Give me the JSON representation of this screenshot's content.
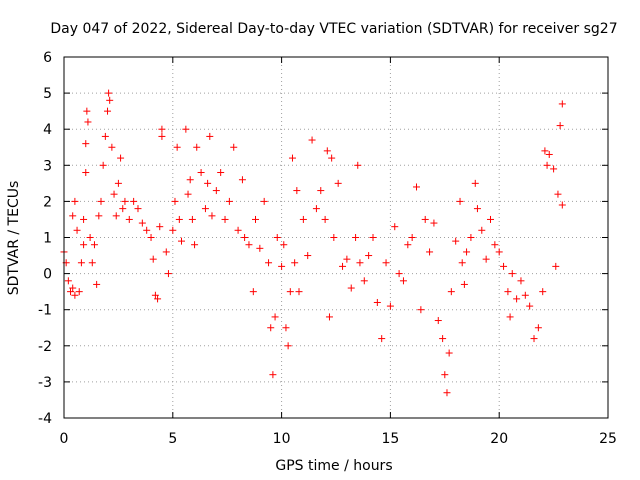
{
  "chart_data": {
    "type": "scatter",
    "title": "Day 047 of 2022, Sidereal Day-to-day VTEC variation (SDTVAR) for receiver sg27",
    "xlabel": "GPS time / hours",
    "ylabel": "SDTVAR / TECUs",
    "xlim": [
      0,
      25
    ],
    "ylim": [
      -4,
      6
    ],
    "xticks": [
      "0",
      "5",
      "10",
      "15",
      "20",
      "25"
    ],
    "yticks": [
      "-4",
      "-3",
      "-2",
      "-1",
      "0",
      "1",
      "2",
      "3",
      "4",
      "5",
      "6"
    ],
    "grid": true,
    "marker": "+",
    "marker_color": "#ff0000",
    "series": [
      {
        "name": "SDTVAR",
        "points": [
          [
            0.0,
            0.6
          ],
          [
            0.1,
            0.3
          ],
          [
            0.2,
            -0.2
          ],
          [
            0.3,
            -0.5
          ],
          [
            0.4,
            -0.4
          ],
          [
            0.4,
            1.6
          ],
          [
            0.5,
            2.0
          ],
          [
            0.5,
            -0.6
          ],
          [
            0.6,
            1.2
          ],
          [
            0.7,
            -0.5
          ],
          [
            0.8,
            0.3
          ],
          [
            0.9,
            0.8
          ],
          [
            0.9,
            1.5
          ],
          [
            1.0,
            2.8
          ],
          [
            1.0,
            3.6
          ],
          [
            1.05,
            4.5
          ],
          [
            1.1,
            4.2
          ],
          [
            1.2,
            1.0
          ],
          [
            1.3,
            0.3
          ],
          [
            1.4,
            0.8
          ],
          [
            1.5,
            -0.3
          ],
          [
            1.6,
            1.6
          ],
          [
            1.7,
            2.0
          ],
          [
            1.8,
            3.0
          ],
          [
            1.9,
            3.8
          ],
          [
            2.0,
            4.5
          ],
          [
            2.05,
            5.0
          ],
          [
            2.1,
            4.8
          ],
          [
            2.2,
            3.5
          ],
          [
            2.3,
            2.2
          ],
          [
            2.4,
            1.6
          ],
          [
            2.5,
            2.5
          ],
          [
            2.6,
            3.2
          ],
          [
            2.7,
            1.8
          ],
          [
            2.8,
            2.0
          ],
          [
            3.0,
            1.5
          ],
          [
            3.2,
            2.0
          ],
          [
            3.4,
            1.8
          ],
          [
            3.6,
            1.4
          ],
          [
            3.8,
            1.2
          ],
          [
            4.0,
            1.0
          ],
          [
            4.1,
            0.4
          ],
          [
            4.2,
            -0.6
          ],
          [
            4.3,
            -0.7
          ],
          [
            4.4,
            1.3
          ],
          [
            4.5,
            3.8
          ],
          [
            4.5,
            4.0
          ],
          [
            4.7,
            0.6
          ],
          [
            4.8,
            0.0
          ],
          [
            5.0,
            1.2
          ],
          [
            5.1,
            2.0
          ],
          [
            5.2,
            3.5
          ],
          [
            5.3,
            1.5
          ],
          [
            5.4,
            0.9
          ],
          [
            5.6,
            4.0
          ],
          [
            5.7,
            2.2
          ],
          [
            5.8,
            2.6
          ],
          [
            5.9,
            1.5
          ],
          [
            6.0,
            0.8
          ],
          [
            6.1,
            3.5
          ],
          [
            6.3,
            2.8
          ],
          [
            6.5,
            1.8
          ],
          [
            6.6,
            2.5
          ],
          [
            6.7,
            3.8
          ],
          [
            6.8,
            1.6
          ],
          [
            7.0,
            2.3
          ],
          [
            7.2,
            2.8
          ],
          [
            7.4,
            1.5
          ],
          [
            7.6,
            2.0
          ],
          [
            7.8,
            3.5
          ],
          [
            8.0,
            1.2
          ],
          [
            8.2,
            2.6
          ],
          [
            8.3,
            1.0
          ],
          [
            8.5,
            0.8
          ],
          [
            8.7,
            -0.5
          ],
          [
            8.8,
            1.5
          ],
          [
            9.0,
            0.7
          ],
          [
            9.2,
            2.0
          ],
          [
            9.4,
            0.3
          ],
          [
            9.5,
            -1.5
          ],
          [
            9.6,
            -2.8
          ],
          [
            9.7,
            -1.2
          ],
          [
            9.8,
            1.0
          ],
          [
            10.0,
            0.2
          ],
          [
            10.1,
            0.8
          ],
          [
            10.2,
            -1.5
          ],
          [
            10.3,
            -2.0
          ],
          [
            10.4,
            -0.5
          ],
          [
            10.5,
            3.2
          ],
          [
            10.6,
            0.3
          ],
          [
            10.7,
            2.3
          ],
          [
            10.8,
            -0.5
          ],
          [
            11.0,
            1.5
          ],
          [
            11.2,
            0.5
          ],
          [
            11.4,
            3.7
          ],
          [
            11.6,
            1.8
          ],
          [
            11.8,
            2.3
          ],
          [
            12.0,
            1.5
          ],
          [
            12.1,
            3.4
          ],
          [
            12.2,
            -1.2
          ],
          [
            12.3,
            3.2
          ],
          [
            12.4,
            1.0
          ],
          [
            12.6,
            2.5
          ],
          [
            12.8,
            0.2
          ],
          [
            13.0,
            0.4
          ],
          [
            13.2,
            -0.4
          ],
          [
            13.4,
            1.0
          ],
          [
            13.5,
            3.0
          ],
          [
            13.6,
            0.3
          ],
          [
            13.8,
            -0.2
          ],
          [
            14.0,
            0.5
          ],
          [
            14.2,
            1.0
          ],
          [
            14.4,
            -0.8
          ],
          [
            14.6,
            -1.8
          ],
          [
            14.8,
            0.3
          ],
          [
            15.0,
            -0.9
          ],
          [
            15.2,
            1.3
          ],
          [
            15.4,
            0.0
          ],
          [
            15.6,
            -0.2
          ],
          [
            15.8,
            0.8
          ],
          [
            16.0,
            1.0
          ],
          [
            16.2,
            2.4
          ],
          [
            16.4,
            -1.0
          ],
          [
            16.6,
            1.5
          ],
          [
            16.8,
            0.6
          ],
          [
            17.0,
            1.4
          ],
          [
            17.2,
            -1.3
          ],
          [
            17.4,
            -1.8
          ],
          [
            17.5,
            -2.8
          ],
          [
            17.6,
            -3.3
          ],
          [
            17.7,
            -2.2
          ],
          [
            17.8,
            -0.5
          ],
          [
            18.0,
            0.9
          ],
          [
            18.2,
            2.0
          ],
          [
            18.3,
            0.3
          ],
          [
            18.4,
            -0.3
          ],
          [
            18.5,
            0.6
          ],
          [
            18.7,
            1.0
          ],
          [
            18.9,
            2.5
          ],
          [
            19.0,
            1.8
          ],
          [
            19.2,
            1.2
          ],
          [
            19.4,
            0.4
          ],
          [
            19.6,
            1.5
          ],
          [
            19.8,
            0.8
          ],
          [
            20.0,
            0.6
          ],
          [
            20.2,
            0.2
          ],
          [
            20.4,
            -0.5
          ],
          [
            20.5,
            -1.2
          ],
          [
            20.6,
            0.0
          ],
          [
            20.8,
            -0.7
          ],
          [
            21.0,
            -0.2
          ],
          [
            21.2,
            -0.6
          ],
          [
            21.4,
            -0.9
          ],
          [
            21.6,
            -1.8
          ],
          [
            21.8,
            -1.5
          ],
          [
            22.0,
            -0.5
          ],
          [
            22.1,
            3.4
          ],
          [
            22.2,
            3.0
          ],
          [
            22.3,
            3.3
          ],
          [
            22.5,
            2.9
          ],
          [
            22.6,
            0.2
          ],
          [
            22.7,
            2.2
          ],
          [
            22.8,
            4.1
          ],
          [
            22.9,
            4.7
          ],
          [
            22.9,
            1.9
          ]
        ]
      }
    ]
  }
}
